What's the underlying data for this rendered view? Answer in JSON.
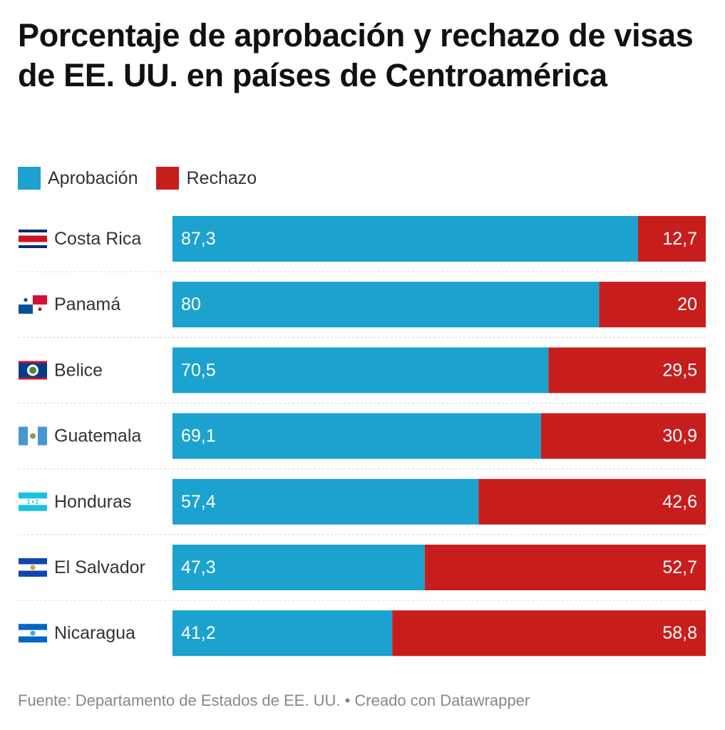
{
  "title": "Porcentaje de aprobación y rechazo de visas de EE. UU. en países de Centroamérica",
  "legend": {
    "approval": "Aprobación",
    "rejection": "Rechazo"
  },
  "colors": {
    "approval": "#1ba2cf",
    "rejection": "#c71e1d"
  },
  "source": "Fuente: Departamento de Estados de EE. UU. • Creado con Datawrapper",
  "chart_data": {
    "type": "bar",
    "orientation": "horizontal",
    "stacked": true,
    "categories": [
      "Costa Rica",
      "Panamá",
      "Belice",
      "Guatemala",
      "Honduras",
      "El Salvador",
      "Nicaragua"
    ],
    "category_flags": [
      "costa-rica-flag-icon",
      "panama-flag-icon",
      "belize-flag-icon",
      "guatemala-flag-icon",
      "honduras-flag-icon",
      "el-salvador-flag-icon",
      "nicaragua-flag-icon"
    ],
    "series": [
      {
        "name": "Aprobación",
        "values": [
          87.3,
          80,
          70.5,
          69.1,
          57.4,
          47.3,
          41.2
        ],
        "labels": [
          "87,3",
          "80",
          "70,5",
          "69,1",
          "57,4",
          "47,3",
          "41,2"
        ]
      },
      {
        "name": "Rechazo",
        "values": [
          12.7,
          20,
          29.5,
          30.9,
          42.6,
          52.7,
          58.8
        ],
        "labels": [
          "12,7",
          "20",
          "29,5",
          "30,9",
          "42,6",
          "52,7",
          "58,8"
        ]
      }
    ],
    "xlim": [
      0,
      100
    ],
    "grid": false,
    "legend_position": "top-left"
  }
}
